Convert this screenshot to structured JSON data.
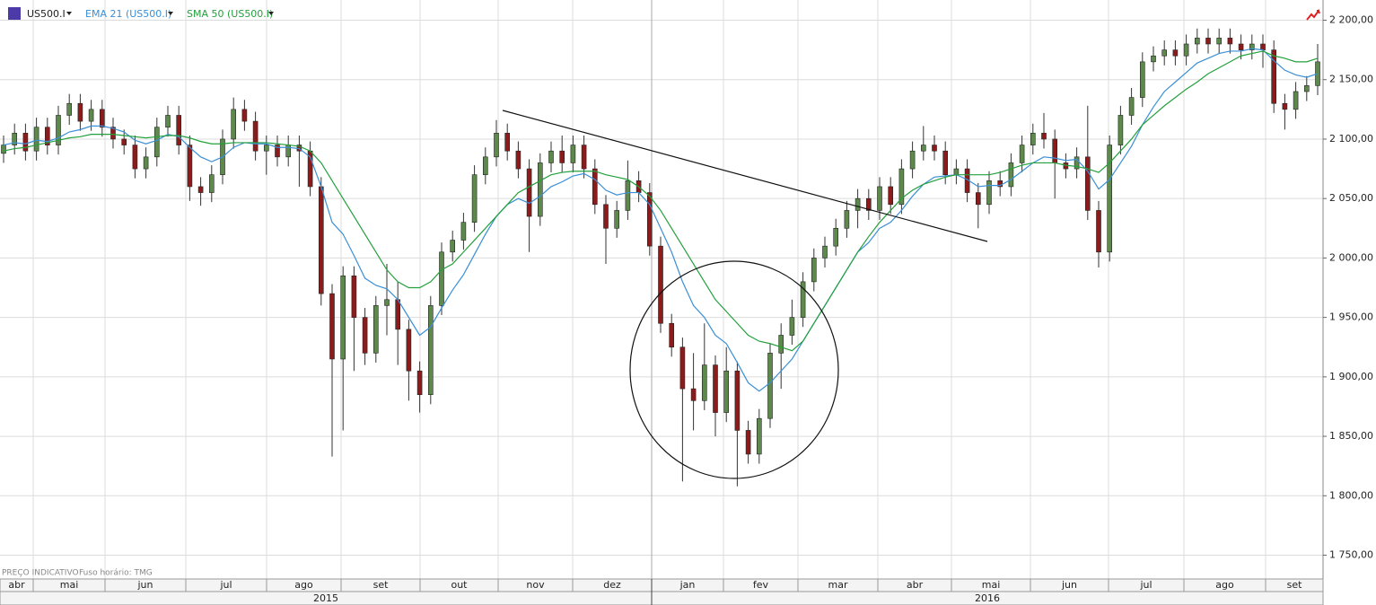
{
  "chart_data": {
    "type": "candlestick",
    "symbol": "US500.I",
    "open": [
      2088,
      2095,
      2105,
      2090,
      2110,
      2095,
      2120,
      2130,
      2115,
      2125,
      2110,
      2100,
      2095,
      2075,
      2085,
      2110,
      2120,
      2095,
      2060,
      2055,
      2070,
      2100,
      2125,
      2115,
      2090,
      2095,
      2085,
      2095,
      2090,
      2060,
      1970,
      1915,
      1985,
      1950,
      1920,
      1960,
      1965,
      1940,
      1905,
      1885,
      1960,
      2005,
      2015,
      2030,
      2070,
      2085,
      2105,
      2090,
      2075,
      2035,
      2080,
      2090,
      2080,
      2095,
      2075,
      2045,
      2025,
      2040,
      2065,
      2055,
      2010,
      1945,
      1925,
      1890,
      1880,
      1910,
      1870,
      1905,
      1855,
      1835,
      1865,
      1920,
      1935,
      1950,
      1980,
      2000,
      2010,
      2025,
      2040,
      2050,
      2040,
      2060,
      2045,
      2075,
      2090,
      2095,
      2090,
      2070,
      2075,
      2055,
      2045,
      2065,
      2060,
      2080,
      2095,
      2105,
      2100,
      2080,
      2075,
      2085,
      2040,
      2005,
      2095,
      2120,
      2135,
      2165,
      2170,
      2175,
      2170,
      2180,
      2185,
      2180,
      2185,
      2180,
      2175,
      2180,
      2175,
      2130,
      2125,
      2140,
      2145
    ],
    "high": [
      2103,
      2113,
      2113,
      2118,
      2118,
      2128,
      2138,
      2138,
      2133,
      2133,
      2118,
      2108,
      2103,
      2093,
      2118,
      2128,
      2128,
      2103,
      2068,
      2078,
      2108,
      2135,
      2133,
      2123,
      2103,
      2103,
      2103,
      2103,
      2098,
      2068,
      1978,
      1993,
      1993,
      1958,
      1968,
      1995,
      1980,
      1948,
      1913,
      1968,
      2013,
      2023,
      2038,
      2078,
      2093,
      2116,
      2113,
      2098,
      2083,
      2088,
      2098,
      2103,
      2103,
      2103,
      2083,
      2053,
      2048,
      2082,
      2073,
      2063,
      2018,
      1953,
      1933,
      1920,
      1945,
      1918,
      1925,
      1913,
      1863,
      1873,
      1928,
      1945,
      1965,
      1988,
      2008,
      2018,
      2033,
      2048,
      2058,
      2058,
      2068,
      2068,
      2083,
      2098,
      2111,
      2103,
      2098,
      2083,
      2083,
      2063,
      2073,
      2073,
      2088,
      2103,
      2113,
      2122,
      2108,
      2088,
      2093,
      2128,
      2048,
      2103,
      2128,
      2143,
      2173,
      2178,
      2183,
      2183,
      2188,
      2193,
      2193,
      2193,
      2193,
      2188,
      2188,
      2188,
      2183,
      2138,
      2148,
      2153,
      2180
    ],
    "low": [
      2080,
      2087,
      2082,
      2082,
      2087,
      2087,
      2112,
      2107,
      2107,
      2102,
      2092,
      2087,
      2067,
      2067,
      2077,
      2102,
      2087,
      2048,
      2044,
      2047,
      2062,
      2092,
      2107,
      2082,
      2070,
      2077,
      2077,
      2060,
      2052,
      1960,
      1833,
      1855,
      1905,
      1910,
      1912,
      1935,
      1910,
      1880,
      1870,
      1877,
      1952,
      1997,
      2007,
      2022,
      2062,
      2077,
      2082,
      2067,
      2005,
      2027,
      2072,
      2072,
      2072,
      2067,
      2037,
      1995,
      2017,
      2032,
      2047,
      2002,
      1937,
      1917,
      1812,
      1855,
      1872,
      1850,
      1862,
      1808,
      1827,
      1827,
      1857,
      1890,
      1927,
      1942,
      1972,
      1992,
      2002,
      2017,
      2025,
      2032,
      2032,
      2037,
      2037,
      2067,
      2082,
      2082,
      2062,
      2062,
      2047,
      2025,
      2037,
      2052,
      2052,
      2072,
      2087,
      2092,
      2050,
      2067,
      2067,
      2032,
      1992,
      1997,
      2087,
      2112,
      2127,
      2157,
      2162,
      2162,
      2162,
      2172,
      2172,
      2172,
      2172,
      2167,
      2167,
      2160,
      2122,
      2108,
      2117,
      2132,
      2137
    ],
    "close": [
      2095,
      2105,
      2090,
      2110,
      2095,
      2120,
      2130,
      2115,
      2125,
      2110,
      2100,
      2095,
      2075,
      2085,
      2110,
      2120,
      2095,
      2060,
      2055,
      2070,
      2100,
      2125,
      2115,
      2090,
      2095,
      2085,
      2095,
      2090,
      2060,
      1970,
      1915,
      1985,
      1950,
      1920,
      1960,
      1965,
      1940,
      1905,
      1885,
      1960,
      2005,
      2015,
      2030,
      2070,
      2085,
      2105,
      2090,
      2075,
      2035,
      2080,
      2090,
      2080,
      2095,
      2075,
      2045,
      2025,
      2040,
      2065,
      2055,
      2010,
      1945,
      1925,
      1890,
      1880,
      1910,
      1870,
      1905,
      1855,
      1835,
      1865,
      1920,
      1935,
      1950,
      1980,
      2000,
      2010,
      2025,
      2040,
      2050,
      2040,
      2060,
      2045,
      2075,
      2090,
      2095,
      2090,
      2070,
      2075,
      2055,
      2045,
      2065,
      2060,
      2080,
      2095,
      2105,
      2100,
      2080,
      2075,
      2085,
      2040,
      2005,
      2095,
      2120,
      2135,
      2165,
      2170,
      2175,
      2170,
      2180,
      2185,
      2180,
      2185,
      2180,
      2175,
      2180,
      2175,
      2130,
      2125,
      2140,
      2145,
      2165
    ],
    "up_color": "#5d8a4c",
    "down_color": "#8c1c1c",
    "series": [
      {
        "name": "EMA 21 (US500.I)",
        "color": "#3a8fd6",
        "values": [
          2095,
          2097,
          2096,
          2099,
          2098,
          2101,
          2106,
          2108,
          2111,
          2111,
          2109,
          2106,
          2099,
          2096,
          2099,
          2104,
          2102,
          2093,
          2085,
          2081,
          2085,
          2093,
          2097,
          2096,
          2096,
          2093,
          2093,
          2092,
          2085,
          2060,
          2030,
          2020,
          2002,
          1983,
          1977,
          1974,
          1965,
          1950,
          1935,
          1942,
          1958,
          1973,
          1986,
          2003,
          2020,
          2035,
          2045,
          2050,
          2046,
          2052,
          2060,
          2064,
          2069,
          2071,
          2066,
          2057,
          2053,
          2055,
          2055,
          2045,
          2025,
          2005,
          1980,
          1960,
          1950,
          1935,
          1928,
          1912,
          1895,
          1888,
          1895,
          1905,
          1915,
          1930,
          1945,
          1960,
          1975,
          1990,
          2005,
          2013,
          2025,
          2030,
          2040,
          2052,
          2062,
          2068,
          2069,
          2070,
          2066,
          2060,
          2061,
          2061,
          2066,
          2073,
          2080,
          2085,
          2084,
          2082,
          2083,
          2073,
          2058,
          2066,
          2080,
          2094,
          2112,
          2127,
          2140,
          2148,
          2156,
          2164,
          2168,
          2172,
          2174,
          2174,
          2176,
          2175,
          2166,
          2158,
          2154,
          2152,
          2155
        ]
      },
      {
        "name": "SMA 50 (US500.I)",
        "color": "#23a03c",
        "values": [
          2090,
          2092,
          2093,
          2095,
          2097,
          2099,
          2101,
          2102,
          2104,
          2104,
          2104,
          2103,
          2102,
          2101,
          2102,
          2103,
          2103,
          2101,
          2098,
          2096,
          2096,
          2097,
          2097,
          2097,
          2097,
          2096,
          2095,
          2094,
          2090,
          2080,
          2065,
          2050,
          2035,
          2020,
          2005,
          1990,
          1980,
          1975,
          1975,
          1980,
          1990,
          1995,
          2005,
          2015,
          2025,
          2035,
          2045,
          2055,
          2060,
          2065,
          2070,
          2072,
          2073,
          2073,
          2073,
          2070,
          2068,
          2066,
          2060,
          2052,
          2040,
          2025,
          2010,
          1995,
          1980,
          1965,
          1955,
          1945,
          1935,
          1930,
          1928,
          1925,
          1922,
          1930,
          1945,
          1960,
          1975,
          1990,
          2005,
          2018,
          2030,
          2040,
          2050,
          2057,
          2062,
          2065,
          2068,
          2070,
          2070,
          2070,
          2070,
          2072,
          2075,
          2078,
          2080,
          2080,
          2080,
          2078,
          2077,
          2075,
          2072,
          2080,
          2090,
          2100,
          2112,
          2120,
          2128,
          2135,
          2142,
          2148,
          2155,
          2160,
          2165,
          2170,
          2172,
          2174,
          2170,
          2168,
          2165,
          2165,
          2168
        ]
      }
    ],
    "ylim": [
      1730,
      2217
    ],
    "yticks": [
      {
        "value": 1750,
        "label": "1 750,00"
      },
      {
        "value": 1800,
        "label": "1 800,00"
      },
      {
        "value": 1850,
        "label": "1 850,00"
      },
      {
        "value": 1900,
        "label": "1 900,00"
      },
      {
        "value": 1950,
        "label": "1 950,00"
      },
      {
        "value": 2000,
        "label": "2 000,00"
      },
      {
        "value": 2050,
        "label": "2 050,00"
      },
      {
        "value": 2100,
        "label": "2 100,00"
      },
      {
        "value": 2150,
        "label": "2 150,00"
      },
      {
        "value": 2200,
        "label": "2 200,00"
      }
    ],
    "grid": true,
    "months": [
      "abr",
      "mai",
      "jun",
      "jul",
      "ago",
      "set",
      "out",
      "nov",
      "dez",
      "jan",
      "fev",
      "mar",
      "abr",
      "mai",
      "jun",
      "jul",
      "ago",
      "set"
    ],
    "years": [
      "2015",
      "2016"
    ],
    "notes": [
      "PREÇO INDICATIVO",
      "Fuso horário: TMG"
    ]
  }
}
